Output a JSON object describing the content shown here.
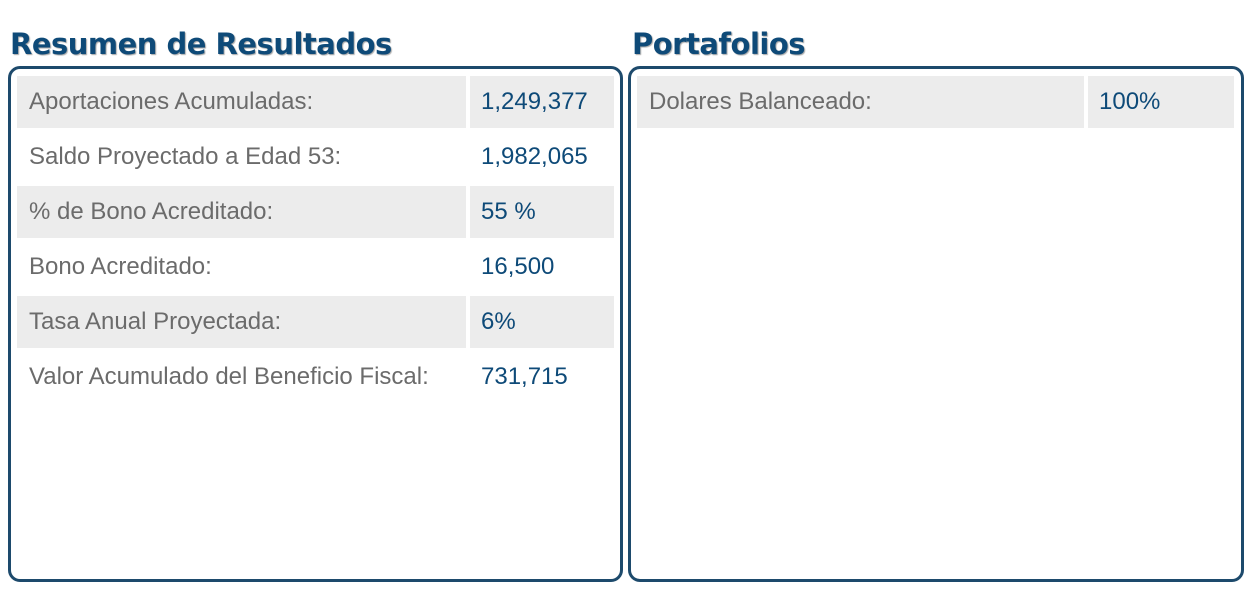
{
  "resumen": {
    "title": "Resumen de Resultados",
    "rows": [
      {
        "label": "Aportaciones Acumuladas:",
        "value": "1,249,377"
      },
      {
        "label": "Saldo Proyectado a Edad 53:",
        "value": "1,982,065"
      },
      {
        "label": "% de Bono Acreditado:",
        "value": "55 %"
      },
      {
        "label": "Bono Acreditado:",
        "value": "16,500"
      },
      {
        "label": "Tasa Anual Proyectada:",
        "value": "6%"
      },
      {
        "label": "Valor Acumulado del Beneficio Fiscal:",
        "value": "731,715"
      }
    ]
  },
  "portafolios": {
    "title": "Portafolios",
    "rows": [
      {
        "label": "Dolares Balanceado:",
        "value": "100%"
      }
    ]
  },
  "colors": {
    "title": "#0e4a78",
    "border": "#1d4a6c",
    "shaded_row": "#ececec",
    "label_text": "#6b6b6b",
    "value_text": "#0e4a78"
  }
}
